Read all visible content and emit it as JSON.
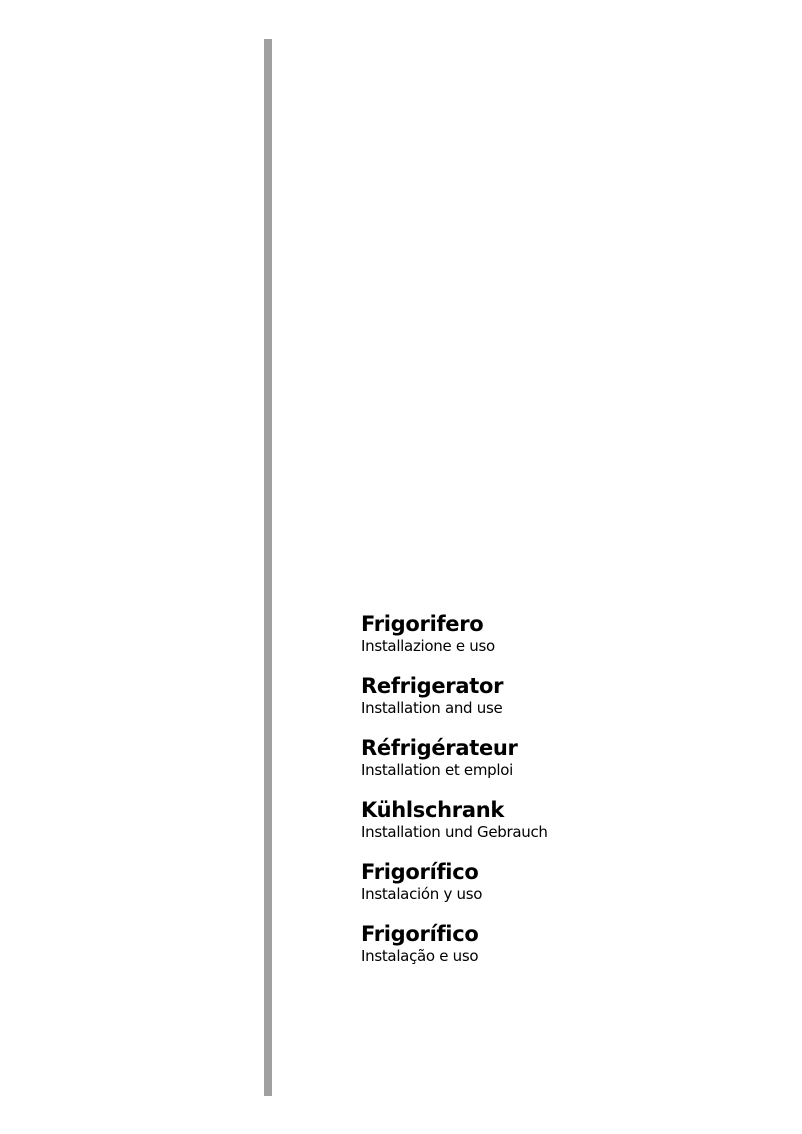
{
  "colors": {
    "side_bar": "#a0a0a0",
    "text": "#000000"
  },
  "languages": [
    {
      "title": "Frigorifero",
      "subtitle": "Installazione e uso"
    },
    {
      "title": "Refrigerator",
      "subtitle": "Installation and use"
    },
    {
      "title": "Réfrigérateur",
      "subtitle": "Installation et emploi"
    },
    {
      "title": "Kühlschrank",
      "subtitle": "Installation und Gebrauch"
    },
    {
      "title": "Frigorífico",
      "subtitle": "Instalación y uso"
    },
    {
      "title": "Frigorífico",
      "subtitle": "Instalação e uso"
    }
  ]
}
